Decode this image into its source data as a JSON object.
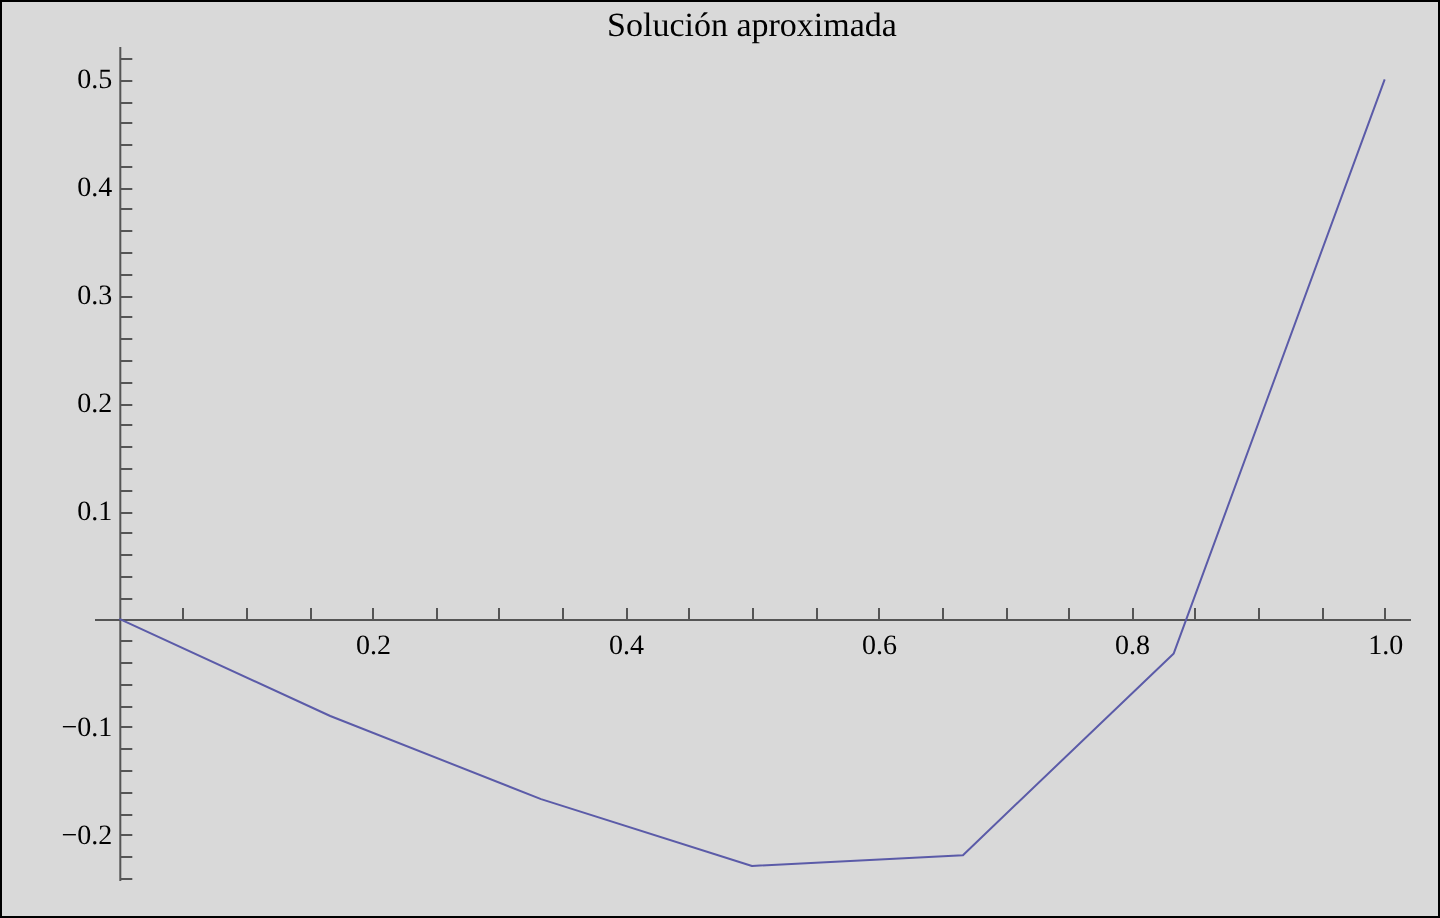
{
  "chart_data": {
    "type": "line",
    "title": "Solución aproximada",
    "x": [
      0,
      0.1667,
      0.3333,
      0.5,
      0.6667,
      0.8333,
      1.0
    ],
    "series": [
      {
        "color": "#5b5ba8",
        "values": [
          0,
          -0.09,
          -0.167,
          -0.229,
          -0.219,
          -0.032,
          0.5
        ]
      }
    ],
    "xlim": [
      -0.02,
      1.02
    ],
    "xticks": [
      {
        "value": 0.05,
        "label": null
      },
      {
        "value": 0.1,
        "label": null
      },
      {
        "value": 0.15,
        "label": null
      },
      0.2,
      {
        "value": 0.25,
        "label": null
      },
      {
        "value": 0.3,
        "label": null
      },
      {
        "value": 0.35,
        "label": null
      },
      0.4,
      {
        "value": 0.45,
        "label": null
      },
      {
        "value": 0.5,
        "label": null
      },
      {
        "value": 0.55,
        "label": null
      },
      0.6,
      {
        "value": 0.65,
        "label": null
      },
      {
        "value": 0.7,
        "label": null
      },
      {
        "value": 0.75,
        "label": null
      },
      0.8,
      {
        "value": 0.85,
        "label": null
      },
      {
        "value": 0.9,
        "label": null
      },
      {
        "value": 0.95,
        "label": null
      },
      {
        "value": 1,
        "label": "1.0"
      }
    ],
    "ylim": [
      -0.242,
      0.531
    ],
    "yticks": [
      {
        "value": -0.24,
        "label": null
      },
      {
        "value": -0.22,
        "label": null
      },
      {
        "value": -0.2,
        "label": "−0.2"
      },
      {
        "value": -0.18,
        "label": null
      },
      {
        "value": -0.16,
        "label": null
      },
      {
        "value": -0.14,
        "label": null
      },
      {
        "value": -0.12,
        "label": null
      },
      {
        "value": -0.1,
        "label": "−0.1"
      },
      {
        "value": -0.08,
        "label": null
      },
      {
        "value": -0.06,
        "label": null
      },
      {
        "value": -0.04,
        "label": null
      },
      {
        "value": -0.02,
        "label": null
      },
      {
        "value": 0.02,
        "label": null
      },
      {
        "value": 0.04,
        "label": null
      },
      {
        "value": 0.06,
        "label": null
      },
      {
        "value": 0.08,
        "label": null
      },
      0.1,
      {
        "value": 0.12,
        "label": null
      },
      {
        "value": 0.14,
        "label": null
      },
      {
        "value": 0.16,
        "label": null
      },
      {
        "value": 0.18,
        "label": null
      },
      0.2,
      {
        "value": 0.22,
        "label": null
      },
      {
        "value": 0.24,
        "label": null
      },
      {
        "value": 0.26,
        "label": null
      },
      {
        "value": 0.28,
        "label": null
      },
      0.3,
      {
        "value": 0.32,
        "label": null
      },
      {
        "value": 0.34,
        "label": null
      },
      {
        "value": 0.36,
        "label": null
      },
      {
        "value": 0.38,
        "label": null
      },
      0.4,
      {
        "value": 0.42,
        "label": null
      },
      {
        "value": 0.44,
        "label": null
      },
      {
        "value": 0.46,
        "label": null
      },
      {
        "value": 0.48,
        "label": null
      },
      0.5,
      {
        "value": 0.52,
        "label": null
      }
    ]
  }
}
